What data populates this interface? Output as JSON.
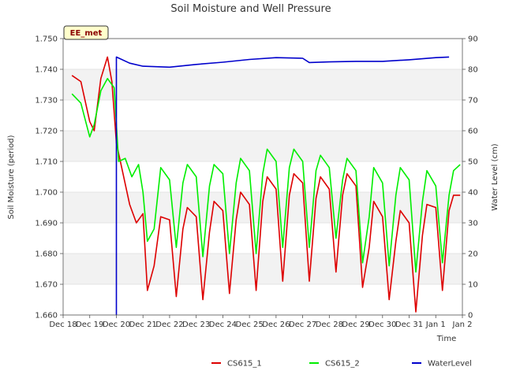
{
  "chart_data": {
    "type": "line",
    "title": "Soil Moisture and Well Pressure",
    "xlabel": "Time",
    "ylabel": "Soil Moisture (period)",
    "y2label": "Water Level (cm)",
    "badge": "EE_met",
    "xlim": [
      "2024-12-18",
      "2025-01-02"
    ],
    "ylim": [
      1.66,
      1.75
    ],
    "y2lim": [
      0,
      90
    ],
    "grid": true,
    "legend_position": "bottom",
    "x_ticks": [
      "Dec 18",
      "Dec 19",
      "Dec 20",
      "Dec 21",
      "Dec 22",
      "Dec 23",
      "Dec 24",
      "Dec 25",
      "Dec 26",
      "Dec 27",
      "Dec 28",
      "Dec 29",
      "Dec 30",
      "Dec 31",
      "Jan 1",
      "Jan 2"
    ],
    "y_ticks": [
      "1.660",
      "1.670",
      "1.680",
      "1.690",
      "1.700",
      "1.710",
      "1.720",
      "1.730",
      "1.740",
      "1.750"
    ],
    "y2_ticks": [
      "0",
      "10",
      "20",
      "30",
      "40",
      "50",
      "60",
      "70",
      "80",
      "90"
    ],
    "series": [
      {
        "name": "CS615_1",
        "color": "#dd0000",
        "axis": "left",
        "points": [
          [
            "2024-12-18 08:00",
            1.738
          ],
          [
            "2024-12-18 16:00",
            1.736
          ],
          [
            "2024-12-19 00:00",
            1.723
          ],
          [
            "2024-12-19 04:00",
            1.72
          ],
          [
            "2024-12-19 10:00",
            1.737
          ],
          [
            "2024-12-19 16:00",
            1.744
          ],
          [
            "2024-12-19 20:00",
            1.736
          ],
          [
            "2024-12-20 00:00",
            1.716
          ],
          [
            "2024-12-20 06:00",
            1.706
          ],
          [
            "2024-12-20 12:00",
            1.696
          ],
          [
            "2024-12-20 18:00",
            1.69
          ],
          [
            "2024-12-21 00:00",
            1.693
          ],
          [
            "2024-12-21 04:00",
            1.668
          ],
          [
            "2024-12-21 10:00",
            1.676
          ],
          [
            "2024-12-21 16:00",
            1.692
          ],
          [
            "2024-12-22 00:00",
            1.691
          ],
          [
            "2024-12-22 06:00",
            1.666
          ],
          [
            "2024-12-22 12:00",
            1.688
          ],
          [
            "2024-12-22 16:00",
            1.695
          ],
          [
            "2024-12-23 00:00",
            1.692
          ],
          [
            "2024-12-23 06:00",
            1.665
          ],
          [
            "2024-12-23 12:00",
            1.687
          ],
          [
            "2024-12-23 16:00",
            1.697
          ],
          [
            "2024-12-24 00:00",
            1.694
          ],
          [
            "2024-12-24 06:00",
            1.667
          ],
          [
            "2024-12-24 12:00",
            1.691
          ],
          [
            "2024-12-24 16:00",
            1.7
          ],
          [
            "2024-12-25 00:00",
            1.696
          ],
          [
            "2024-12-25 06:00",
            1.668
          ],
          [
            "2024-12-25 12:00",
            1.697
          ],
          [
            "2024-12-25 16:00",
            1.705
          ],
          [
            "2024-12-26 00:00",
            1.701
          ],
          [
            "2024-12-26 06:00",
            1.671
          ],
          [
            "2024-12-26 12:00",
            1.699
          ],
          [
            "2024-12-26 16:00",
            1.706
          ],
          [
            "2024-12-27 00:00",
            1.703
          ],
          [
            "2024-12-27 06:00",
            1.671
          ],
          [
            "2024-12-27 12:00",
            1.698
          ],
          [
            "2024-12-27 16:00",
            1.705
          ],
          [
            "2024-12-28 00:00",
            1.701
          ],
          [
            "2024-12-28 06:00",
            1.674
          ],
          [
            "2024-12-28 12:00",
            1.699
          ],
          [
            "2024-12-28 16:00",
            1.706
          ],
          [
            "2024-12-29 00:00",
            1.702
          ],
          [
            "2024-12-29 06:00",
            1.669
          ],
          [
            "2024-12-29 12:00",
            1.682
          ],
          [
            "2024-12-29 16:00",
            1.697
          ],
          [
            "2024-12-30 00:00",
            1.692
          ],
          [
            "2024-12-30 06:00",
            1.665
          ],
          [
            "2024-12-30 12:00",
            1.684
          ],
          [
            "2024-12-30 16:00",
            1.694
          ],
          [
            "2024-12-31 00:00",
            1.69
          ],
          [
            "2024-12-31 06:00",
            1.661
          ],
          [
            "2024-12-31 12:00",
            1.686
          ],
          [
            "2024-12-31 16:00",
            1.696
          ],
          [
            "2025-01-01 00:00",
            1.695
          ],
          [
            "2025-01-01 06:00",
            1.668
          ],
          [
            "2025-01-01 12:00",
            1.694
          ],
          [
            "2025-01-01 16:00",
            1.699
          ],
          [
            "2025-01-01 22:00",
            1.699
          ]
        ]
      },
      {
        "name": "CS615_2",
        "color": "#00ee00",
        "axis": "left",
        "points": [
          [
            "2024-12-18 08:00",
            1.732
          ],
          [
            "2024-12-18 16:00",
            1.729
          ],
          [
            "2024-12-19 00:00",
            1.718
          ],
          [
            "2024-12-19 04:00",
            1.722
          ],
          [
            "2024-12-19 10:00",
            1.733
          ],
          [
            "2024-12-19 16:00",
            1.737
          ],
          [
            "2024-12-19 22:00",
            1.734
          ],
          [
            "2024-12-20 02:00",
            1.71
          ],
          [
            "2024-12-20 08:00",
            1.711
          ],
          [
            "2024-12-20 14:00",
            1.705
          ],
          [
            "2024-12-20 20:00",
            1.709
          ],
          [
            "2024-12-21 00:00",
            1.7
          ],
          [
            "2024-12-21 04:00",
            1.684
          ],
          [
            "2024-12-21 10:00",
            1.688
          ],
          [
            "2024-12-21 16:00",
            1.708
          ],
          [
            "2024-12-22 00:00",
            1.704
          ],
          [
            "2024-12-22 06:00",
            1.682
          ],
          [
            "2024-12-22 12:00",
            1.703
          ],
          [
            "2024-12-22 16:00",
            1.709
          ],
          [
            "2024-12-23 00:00",
            1.705
          ],
          [
            "2024-12-23 06:00",
            1.679
          ],
          [
            "2024-12-23 12:00",
            1.702
          ],
          [
            "2024-12-23 16:00",
            1.709
          ],
          [
            "2024-12-24 00:00",
            1.706
          ],
          [
            "2024-12-24 06:00",
            1.68
          ],
          [
            "2024-12-24 12:00",
            1.703
          ],
          [
            "2024-12-24 16:00",
            1.711
          ],
          [
            "2024-12-25 00:00",
            1.707
          ],
          [
            "2024-12-25 06:00",
            1.68
          ],
          [
            "2024-12-25 12:00",
            1.706
          ],
          [
            "2024-12-25 16:00",
            1.714
          ],
          [
            "2024-12-26 00:00",
            1.71
          ],
          [
            "2024-12-26 06:00",
            1.682
          ],
          [
            "2024-12-26 12:00",
            1.708
          ],
          [
            "2024-12-26 16:00",
            1.714
          ],
          [
            "2024-12-27 00:00",
            1.71
          ],
          [
            "2024-12-27 06:00",
            1.682
          ],
          [
            "2024-12-27 12:00",
            1.707
          ],
          [
            "2024-12-27 16:00",
            1.712
          ],
          [
            "2024-12-28 00:00",
            1.708
          ],
          [
            "2024-12-28 06:00",
            1.685
          ],
          [
            "2024-12-28 12:00",
            1.704
          ],
          [
            "2024-12-28 16:00",
            1.711
          ],
          [
            "2024-12-29 00:00",
            1.707
          ],
          [
            "2024-12-29 06:00",
            1.677
          ],
          [
            "2024-12-29 12:00",
            1.692
          ],
          [
            "2024-12-29 16:00",
            1.708
          ],
          [
            "2024-12-30 00:00",
            1.703
          ],
          [
            "2024-12-30 06:00",
            1.676
          ],
          [
            "2024-12-30 12:00",
            1.699
          ],
          [
            "2024-12-30 16:00",
            1.708
          ],
          [
            "2024-12-31 00:00",
            1.704
          ],
          [
            "2024-12-31 06:00",
            1.674
          ],
          [
            "2024-12-31 12:00",
            1.697
          ],
          [
            "2024-12-31 16:00",
            1.707
          ],
          [
            "2025-01-01 00:00",
            1.702
          ],
          [
            "2025-01-01 06:00",
            1.677
          ],
          [
            "2025-01-01 12:00",
            1.699
          ],
          [
            "2025-01-01 16:00",
            1.707
          ],
          [
            "2025-01-01 22:00",
            1.709
          ]
        ]
      },
      {
        "name": "WaterLevel",
        "color": "#0000cc",
        "axis": "right",
        "points": [
          [
            "2024-12-20 00:00",
            0
          ],
          [
            "2024-12-20 00:00",
            84
          ],
          [
            "2024-12-20 12:00",
            82
          ],
          [
            "2024-12-21 00:00",
            81
          ],
          [
            "2024-12-22 00:00",
            80.7
          ],
          [
            "2024-12-23 00:00",
            81.6
          ],
          [
            "2024-12-24 00:00",
            82.3
          ],
          [
            "2024-12-25 00:00",
            83.2
          ],
          [
            "2024-12-26 00:00",
            83.8
          ],
          [
            "2024-12-27 00:00",
            83.6
          ],
          [
            "2024-12-27 06:00",
            82.2
          ],
          [
            "2024-12-28 00:00",
            82.4
          ],
          [
            "2024-12-29 00:00",
            82.6
          ],
          [
            "2024-12-30 00:00",
            82.6
          ],
          [
            "2024-12-31 00:00",
            83.1
          ],
          [
            "2025-01-01 00:00",
            83.8
          ],
          [
            "2025-01-01 12:00",
            84
          ]
        ]
      }
    ]
  }
}
